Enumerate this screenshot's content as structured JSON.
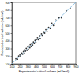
{
  "chart_data": {
    "type": "scatter",
    "xlabel": "Experimental critical volume (mL/mol)",
    "ylabel": "Predicted critical volume (mL/mol)",
    "xlim": [
      100,
      900
    ],
    "ylim": [
      100,
      900
    ],
    "xticks": [
      100,
      200,
      300,
      400,
      500,
      600,
      700,
      800,
      900
    ],
    "yticks": [
      100,
      200,
      300,
      400,
      500,
      600,
      700,
      800,
      900
    ],
    "grid": false,
    "series": [
      {
        "type": "line",
        "color": "#7fb8e0",
        "line_style": "solid",
        "x": [
          100,
          900
        ],
        "values": [
          100,
          900
        ]
      },
      {
        "type": "scatter",
        "color": "#333333",
        "marker": "circle",
        "x": [
          150,
          170,
          185,
          200,
          210,
          225,
          235,
          245,
          255,
          260,
          270,
          280,
          290,
          300,
          305,
          315,
          325,
          330,
          340,
          350,
          360,
          370,
          380,
          390,
          400,
          410,
          420,
          430,
          445,
          455,
          470,
          480,
          495,
          510,
          525,
          540,
          560,
          580,
          600,
          620,
          650,
          690,
          720,
          780,
          830
        ],
        "values": [
          165,
          160,
          200,
          215,
          195,
          240,
          225,
          260,
          240,
          280,
          265,
          300,
          275,
          320,
          290,
          330,
          310,
          350,
          325,
          360,
          345,
          385,
          365,
          405,
          380,
          420,
          440,
          415,
          460,
          430,
          490,
          465,
          510,
          500,
          545,
          520,
          575,
          560,
          630,
          600,
          670,
          700,
          700,
          790,
          820
        ]
      }
    ]
  }
}
